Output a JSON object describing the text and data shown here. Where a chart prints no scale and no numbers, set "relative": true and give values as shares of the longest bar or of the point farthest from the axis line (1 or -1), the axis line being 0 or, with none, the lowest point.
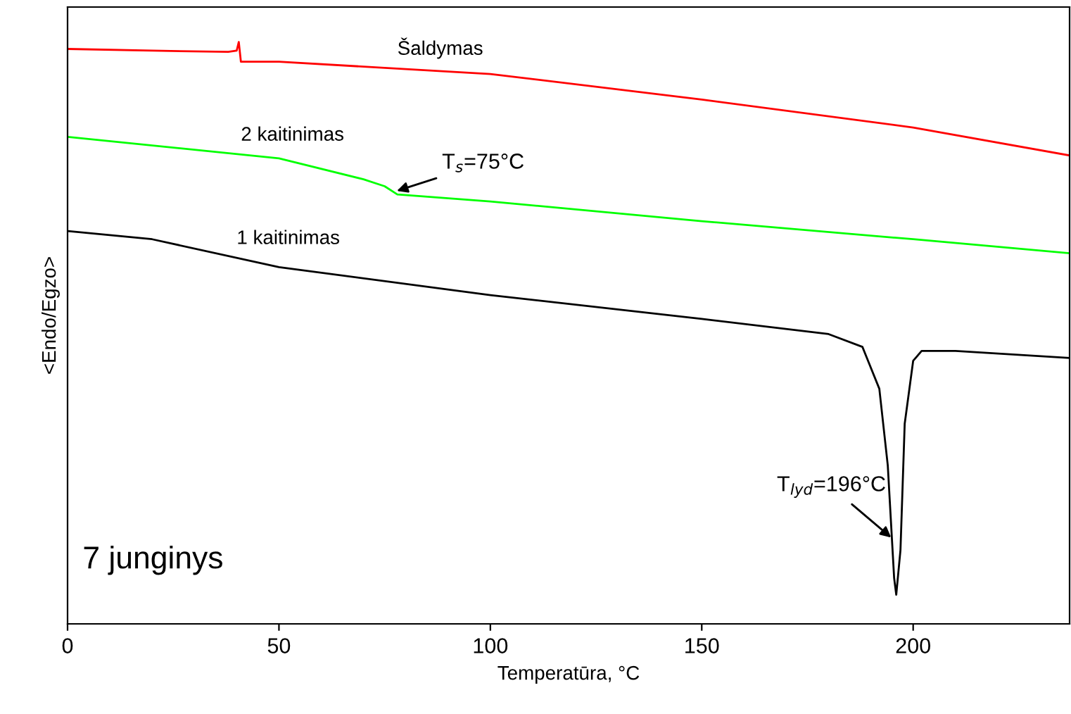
{
  "chart_data": {
    "type": "line",
    "relative": true,
    "xlabel": "Temperatūra, °C",
    "ylabel": "<Endo/Egzo>",
    "xlim": [
      0,
      237
    ],
    "xticks": [
      0,
      50,
      100,
      150,
      200
    ],
    "tick_labels": "x",
    "grid": false,
    "legend": false,
    "marker": "none",
    "line_style": "solid",
    "series": [
      {
        "name": "Šaldymas",
        "color": "#ff0000",
        "x": [
          0,
          20,
          38,
          40,
          40.5,
          41,
          50,
          100,
          150,
          200,
          237
        ],
        "values": [
          0.988,
          0.985,
          0.983,
          0.985,
          1.0,
          0.966,
          0.966,
          0.945,
          0.901,
          0.853,
          0.805
        ]
      },
      {
        "name": "2 kaitinimas",
        "color": "#00ff00",
        "x": [
          0,
          50,
          70,
          75,
          78,
          100,
          150,
          200,
          237
        ],
        "values": [
          0.837,
          0.8,
          0.764,
          0.752,
          0.738,
          0.726,
          0.692,
          0.661,
          0.637
        ]
      },
      {
        "name": "1 kaitinimas",
        "color": "#000000",
        "x": [
          0,
          20,
          50,
          100,
          150,
          180,
          188,
          192,
          194,
          195.5,
          196,
          197,
          198,
          200,
          202,
          210,
          237
        ],
        "values": [
          0.675,
          0.661,
          0.613,
          0.565,
          0.524,
          0.498,
          0.476,
          0.404,
          0.272,
          0.079,
          0.05,
          0.127,
          0.344,
          0.452,
          0.469,
          0.469,
          0.457
        ]
      }
    ],
    "annotations": [
      {
        "text": "T$_{s}$=75°C",
        "x": 77,
        "y": 0.742
      },
      {
        "text": "T$_{lyd}$=196°C",
        "x": 195.5,
        "y": 0.144
      },
      "7 junginys"
    ]
  }
}
